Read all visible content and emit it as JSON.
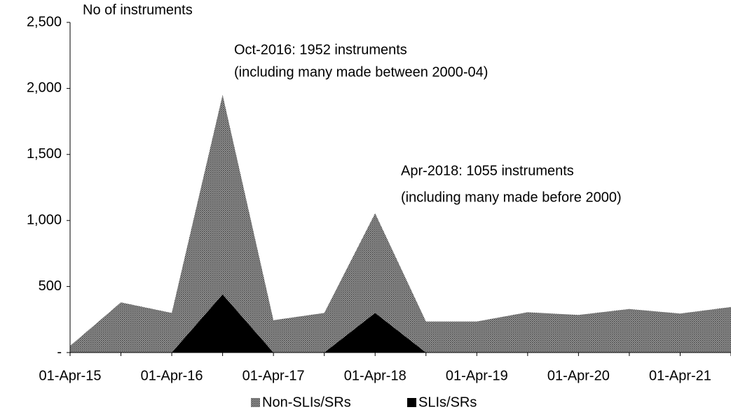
{
  "chart_data": {
    "type": "stacked_area",
    "y_label": "No of instruments",
    "categories": [
      "01-Apr-15",
      null,
      "01-Apr-16",
      null,
      "01-Apr-17",
      null,
      "01-Apr-18",
      null,
      "01-Apr-19",
      null,
      "01-Apr-20",
      null,
      "01-Apr-21",
      null
    ],
    "series": [
      {
        "name": "SLIs/SRs",
        "color": "#000000",
        "values": [
          0,
          0,
          0,
          440,
          0,
          0,
          300,
          0,
          0,
          0,
          0,
          0,
          0,
          0
        ]
      },
      {
        "name": "Non-SLIs/SRs",
        "color": "#808080",
        "values": [
          50,
          380,
          300,
          1512,
          245,
          300,
          755,
          235,
          235,
          305,
          285,
          330,
          295,
          345
        ]
      }
    ],
    "ylim": [
      0,
      2500
    ],
    "yticks": [
      {
        "value": 0,
        "label": "-"
      },
      500,
      {
        "value": 1000,
        "label": "1,000"
      },
      {
        "value": 1500,
        "label": "1,500"
      },
      {
        "value": 2000,
        "label": "2,000"
      },
      {
        "value": 2500,
        "label": "2,500"
      }
    ],
    "annotations": [
      "Oct-2016: 1952 instruments",
      "(including many made between 2000-04)",
      "Apr-2018: 1055 instruments",
      "(including many made before 2000)"
    ],
    "legend": "bottom"
  }
}
